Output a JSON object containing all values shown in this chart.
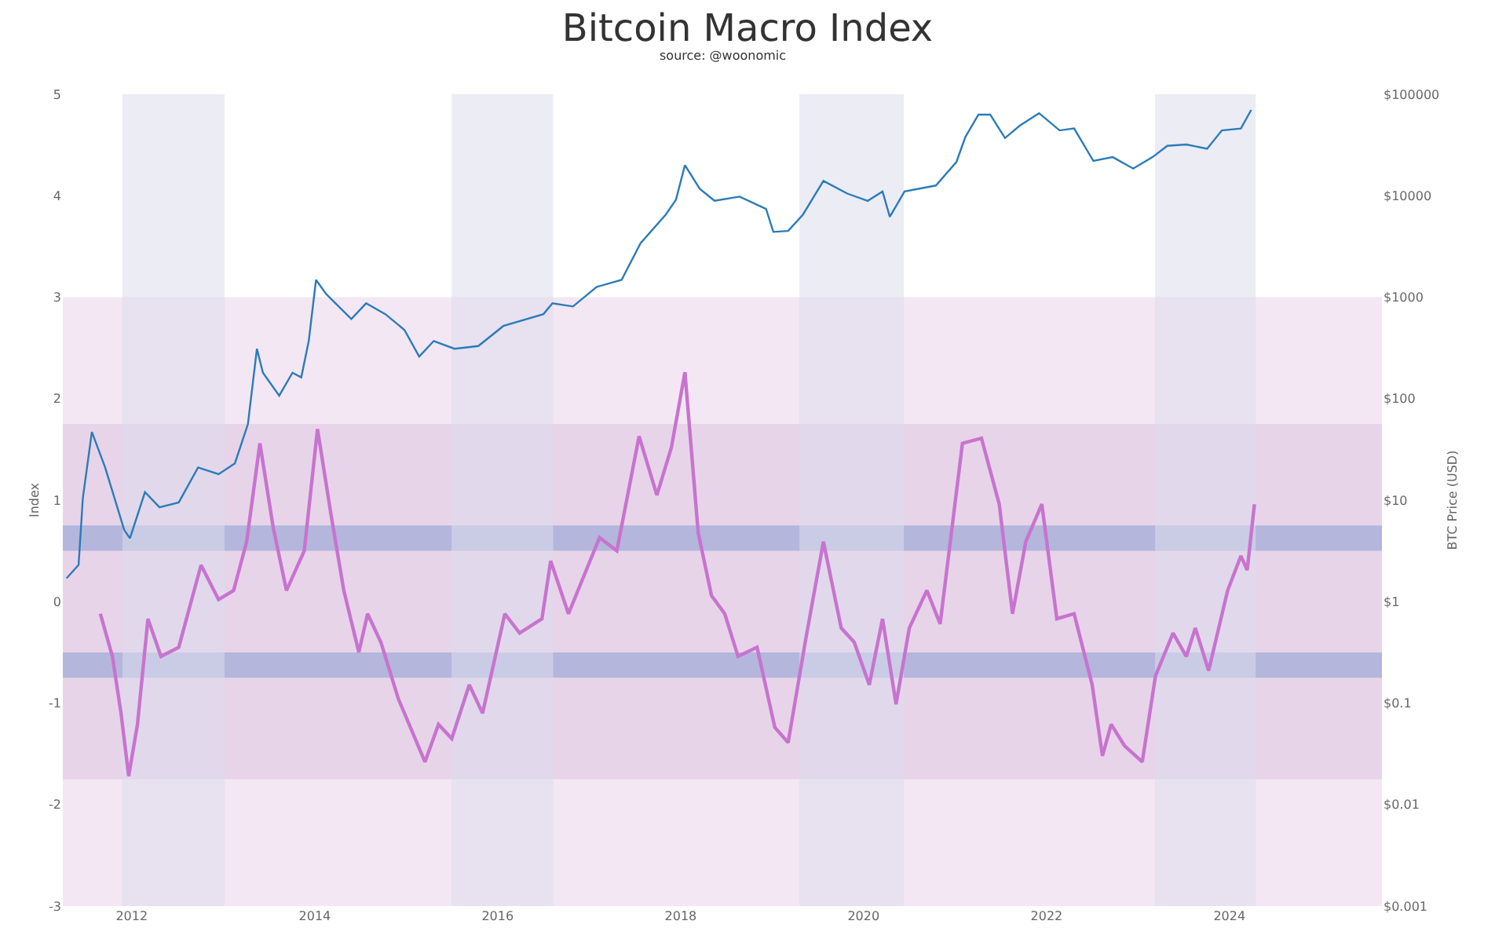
{
  "chart_data": {
    "type": "line",
    "title": "Bitcoin Macro Index",
    "annotations": [
      "source: @woonomic"
    ],
    "ylabel": "Index",
    "y2label": "BTC Price (USD)",
    "xlim": [
      "2011-04-01",
      "2025-09-01"
    ],
    "xticks": [
      {
        "value": "2012-01-01",
        "label": "2012"
      },
      {
        "value": "2014-01-01",
        "label": "2014"
      },
      {
        "value": "2016-01-01",
        "label": "2016"
      },
      {
        "value": "2018-01-01",
        "label": "2018"
      },
      {
        "value": "2020-01-01",
        "label": "2020"
      },
      {
        "value": "2022-01-01",
        "label": "2022"
      },
      {
        "value": "2024-01-01",
        "label": "2024"
      }
    ],
    "ylim": [
      -3,
      5
    ],
    "yticks": [
      -3,
      -2,
      -1,
      0,
      1,
      2,
      3,
      4,
      5
    ],
    "y2lim": [
      0.001,
      100000
    ],
    "y2ticks": [
      {
        "value": 0.001,
        "label": "$0.001"
      },
      {
        "value": 0.01,
        "label": "$0.01"
      },
      {
        "value": 0.1,
        "label": "$0.1"
      },
      {
        "value": 1,
        "label": "$1"
      },
      {
        "value": 10,
        "label": "$10"
      },
      {
        "value": 100,
        "label": "$100"
      },
      {
        "value": 1000,
        "label": "$1000"
      },
      {
        "value": 10000,
        "label": "$10000"
      },
      {
        "value": 100000,
        "label": "$100000"
      }
    ],
    "log": "y2",
    "grid": false,
    "marker": "none",
    "line_style": "solid",
    "bands": [
      {
        "axis": "y",
        "from": -3,
        "to": 3,
        "color": "#f3e7f3"
      },
      {
        "axis": "y",
        "from": -1.75,
        "to": 1.75,
        "color": "#e7d4e9"
      },
      {
        "axis": "y",
        "from": 0.5,
        "to": 0.75,
        "color": "#b4b6dc"
      },
      {
        "axis": "y",
        "from": -0.75,
        "to": -0.5,
        "color": "#b4b6dc"
      },
      {
        "axis": "x",
        "from": "2011-11-25",
        "to": "2013-01-06",
        "color": "#dcdcec"
      },
      {
        "axis": "x",
        "from": "2015-07-01",
        "to": "2016-08-10",
        "color": "#dcdcec"
      },
      {
        "axis": "x",
        "from": "2019-04-20",
        "to": "2020-06-10",
        "color": "#dcdcec"
      },
      {
        "axis": "x",
        "from": "2023-03-10",
        "to": "2024-04-15",
        "color": "#dcdcec"
      }
    ],
    "series": [
      {
        "axis": "y2",
        "color": "#2b7bb9",
        "x": [
          "2011-04-16",
          "2011-06-03",
          "2011-06-20",
          "2011-07-26",
          "2011-09-17",
          "2011-12-02",
          "2011-12-25",
          "2012-02-23",
          "2012-04-21",
          "2012-07-07",
          "2012-09-22",
          "2012-12-13",
          "2013-02-16",
          "2013-04-09",
          "2013-05-15",
          "2013-06-08",
          "2013-08-12",
          "2013-10-04",
          "2013-11-08",
          "2013-12-08",
          "2014-01-06",
          "2014-02-16",
          "2014-05-27",
          "2014-07-25",
          "2014-10-10",
          "2014-12-25",
          "2015-02-22",
          "2015-04-21",
          "2015-07-13",
          "2015-10-16",
          "2016-01-24",
          "2016-07-02",
          "2016-08-07",
          "2016-10-28",
          "2017-01-30",
          "2017-05-10",
          "2017-07-25",
          "2017-11-02",
          "2017-12-13",
          "2018-01-18",
          "2018-03-18",
          "2018-05-16",
          "2018-08-24",
          "2018-12-08",
          "2019-01-06",
          "2019-03-06",
          "2019-05-04",
          "2019-07-25",
          "2019-10-28",
          "2020-01-18",
          "2020-03-17",
          "2020-04-15",
          "2020-06-13",
          "2020-10-16",
          "2021-01-06",
          "2021-02-11",
          "2021-04-04",
          "2021-05-21",
          "2021-07-19",
          "2021-09-16",
          "2021-12-02",
          "2022-02-22",
          "2022-04-21",
          "2022-07-07",
          "2022-09-22",
          "2022-12-13",
          "2023-02-28",
          "2023-04-28",
          "2023-07-13",
          "2023-10-04",
          "2023-12-02",
          "2024-02-16",
          "2024-03-28"
        ],
        "values": [
          1.7,
          2.3,
          10.5,
          47,
          21,
          5.1,
          4.2,
          12,
          8.5,
          9.5,
          21,
          18,
          23,
          56,
          310,
          180,
          107,
          180,
          162,
          370,
          1480,
          1070,
          610,
          870,
          680,
          475,
          260,
          370,
          310,
          330,
          520,
          680,
          870,
          810,
          1260,
          1480,
          3400,
          6500,
          9100,
          20000,
          11700,
          8900,
          9800,
          7400,
          4400,
          4500,
          6500,
          14000,
          10500,
          8900,
          11000,
          6200,
          11000,
          12600,
          21500,
          38000,
          63000,
          63000,
          37000,
          49000,
          65000,
          44000,
          46000,
          22000,
          24000,
          18500,
          24000,
          31000,
          32000,
          29000,
          44000,
          46000,
          70000
        ]
      },
      {
        "axis": "y",
        "color": "#c873cf",
        "x": [
          "2011-08-29",
          "2011-10-16",
          "2011-11-20",
          "2011-12-20",
          "2012-01-24",
          "2012-03-06",
          "2012-04-27",
          "2012-07-07",
          "2012-10-04",
          "2012-12-13",
          "2013-02-11",
          "2013-04-04",
          "2013-05-27",
          "2013-07-19",
          "2013-09-10",
          "2013-11-20",
          "2014-01-12",
          "2014-03-06",
          "2014-04-27",
          "2014-06-26",
          "2014-07-31",
          "2014-09-22",
          "2014-12-01",
          "2015-03-17",
          "2015-05-10",
          "2015-07-02",
          "2015-09-10",
          "2015-11-02",
          "2016-01-30",
          "2016-03-29",
          "2016-06-26",
          "2016-07-31",
          "2016-10-10",
          "2017-02-11",
          "2017-04-21",
          "2017-07-19",
          "2017-09-28",
          "2017-11-25",
          "2018-01-18",
          "2018-03-12",
          "2018-05-04",
          "2018-06-26",
          "2018-08-18",
          "2018-11-02",
          "2019-01-12",
          "2019-03-06",
          "2019-05-16",
          "2019-07-25",
          "2019-10-04",
          "2019-11-25",
          "2020-01-24",
          "2020-03-17",
          "2020-05-10",
          "2020-07-02",
          "2020-09-10",
          "2020-11-02",
          "2021-01-30",
          "2021-04-16",
          "2021-06-26",
          "2021-08-18",
          "2021-10-10",
          "2021-12-13",
          "2022-02-11",
          "2022-04-21",
          "2022-07-02",
          "2022-08-12",
          "2022-09-16",
          "2022-11-08",
          "2023-01-18",
          "2023-03-12",
          "2023-05-21",
          "2023-07-13",
          "2023-08-18",
          "2023-10-10",
          "2023-12-25",
          "2024-02-16",
          "2024-03-12",
          "2024-04-10"
        ],
        "values": [
          -0.12,
          -0.54,
          -1.11,
          -1.72,
          -1.21,
          -0.17,
          -0.54,
          -0.45,
          0.36,
          0.02,
          0.11,
          0.59,
          1.56,
          0.73,
          0.11,
          0.5,
          1.7,
          0.87,
          0.11,
          -0.5,
          -0.12,
          -0.4,
          -0.96,
          -1.58,
          -1.21,
          -1.35,
          -0.82,
          -1.1,
          -0.12,
          -0.31,
          -0.17,
          0.4,
          -0.12,
          0.63,
          0.5,
          1.63,
          1.05,
          1.52,
          2.26,
          0.68,
          0.06,
          -0.12,
          -0.54,
          -0.45,
          -1.24,
          -1.39,
          -0.36,
          0.59,
          -0.26,
          -0.4,
          -0.82,
          -0.17,
          -1.01,
          -0.26,
          0.11,
          -0.22,
          1.56,
          1.61,
          0.96,
          -0.12,
          0.59,
          0.96,
          -0.17,
          -0.12,
          -0.82,
          -1.52,
          -1.21,
          -1.42,
          -1.58,
          -0.73,
          -0.31,
          -0.54,
          -0.26,
          -0.68,
          0.11,
          0.45,
          0.31,
          0.96
        ]
      }
    ]
  }
}
